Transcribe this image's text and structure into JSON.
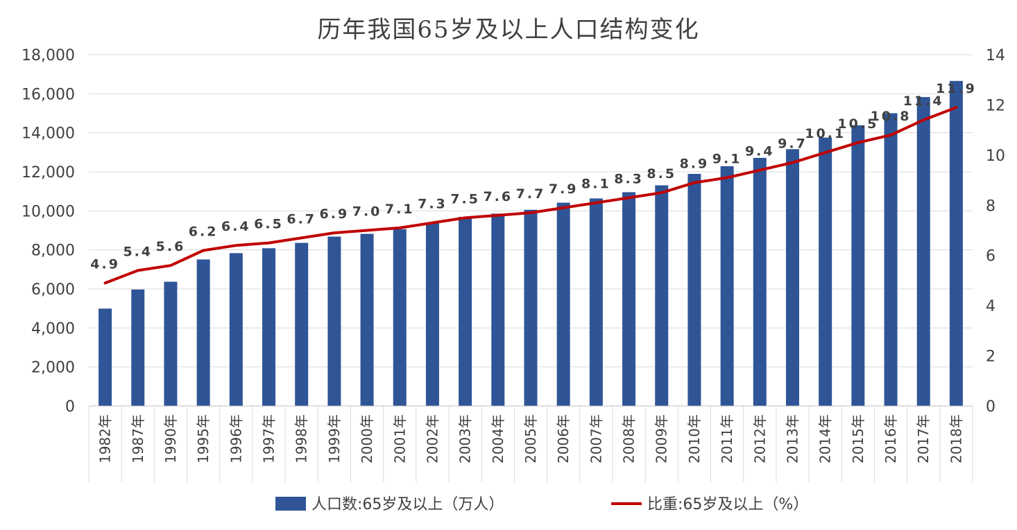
{
  "chart_data": {
    "type": "bar",
    "title": "历年我国65岁及以上人口结构变化",
    "categories": [
      "1982年",
      "1987年",
      "1990年",
      "1995年",
      "1996年",
      "1997年",
      "1998年",
      "1999年",
      "2000年",
      "2001年",
      "2002年",
      "2003年",
      "2004年",
      "2005年",
      "2006年",
      "2007年",
      "2008年",
      "2009年",
      "2010年",
      "2011年",
      "2012年",
      "2013年",
      "2014年",
      "2015年",
      "2016年",
      "2017年",
      "2018年"
    ],
    "series": [
      {
        "name": "人口数:65岁及以上（万人）",
        "type": "bar",
        "axis": "left",
        "color": "#2F5597",
        "values": [
          4991,
          5968,
          6368,
          7510,
          7833,
          8085,
          8359,
          8679,
          8821,
          9062,
          9377,
          9692,
          9857,
          10055,
          10419,
          10636,
          10956,
          11307,
          11894,
          12288,
          12714,
          13161,
          13755,
          14386,
          15003,
          15831,
          16658
        ]
      },
      {
        "name": "比重:65岁及以上（%）",
        "type": "line",
        "axis": "right",
        "color": "#C00000",
        "values": [
          4.9,
          5.4,
          5.6,
          6.2,
          6.4,
          6.5,
          6.7,
          6.9,
          7.0,
          7.1,
          7.3,
          7.5,
          7.6,
          7.7,
          7.9,
          8.1,
          8.3,
          8.5,
          8.9,
          9.1,
          9.4,
          9.7,
          10.1,
          10.5,
          10.8,
          11.4,
          11.9
        ],
        "labels": [
          "4.9",
          "5.4",
          "5.6",
          "6.2",
          "6.4",
          "6.5",
          "6.7",
          "6.9",
          "7.0",
          "7.1",
          "7.3",
          "7.5",
          "7.6",
          "7.7",
          "7.9",
          "8.1",
          "8.3",
          "8.5",
          "8.9",
          "9.1",
          "9.4",
          "9.7",
          "10.1",
          "10.5",
          "10.8",
          "11.4",
          "11.9"
        ]
      }
    ],
    "y_left": {
      "ylim": [
        0,
        18000
      ],
      "ticks": [
        0,
        2000,
        4000,
        6000,
        8000,
        10000,
        12000,
        14000,
        16000,
        18000
      ],
      "tick_labels": [
        "0",
        "2,000",
        "4,000",
        "6,000",
        "8,000",
        "10,000",
        "12,000",
        "14,000",
        "16,000",
        "18,000"
      ]
    },
    "y_right": {
      "ylim": [
        0,
        14
      ],
      "ticks": [
        0,
        2,
        4,
        6,
        8,
        10,
        12,
        14
      ],
      "tick_labels": [
        "0",
        "2",
        "4",
        "6",
        "8",
        "10",
        "12",
        "14"
      ]
    },
    "grid": true,
    "legend_position": "bottom"
  }
}
